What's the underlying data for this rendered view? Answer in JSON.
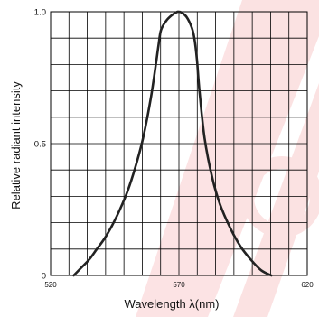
{
  "chart_data": {
    "type": "line",
    "xlabel": "Wavelength λ(nm)",
    "ylabel": "Relative radiant intensity",
    "xlim": [
      520,
      620
    ],
    "ylim": [
      0,
      1.0
    ],
    "x_ticks": [
      {
        "value": 520,
        "label": "520"
      },
      {
        "value": 570,
        "label": "570"
      },
      {
        "value": 620,
        "label": "620"
      }
    ],
    "y_ticks": [
      {
        "value": 0,
        "label": "0"
      },
      {
        "value": 0.5,
        "label": "0.5"
      },
      {
        "value": 1.0,
        "label": "1.0"
      }
    ],
    "grid": true,
    "series": [
      {
        "color": "#222222",
        "x": [
          529,
          532,
          535,
          538,
          541,
          544,
          547,
          550,
          553,
          556,
          559,
          561,
          562,
          563,
          565,
          567,
          569,
          570,
          571,
          573,
          575,
          576,
          577,
          578,
          580,
          583,
          586,
          590,
          594,
          598,
          602,
          606
        ],
        "y": [
          0.0,
          0.03,
          0.06,
          0.1,
          0.14,
          0.19,
          0.25,
          0.32,
          0.41,
          0.52,
          0.67,
          0.8,
          0.87,
          0.93,
          0.965,
          0.985,
          0.998,
          1.0,
          0.997,
          0.98,
          0.94,
          0.9,
          0.82,
          0.7,
          0.52,
          0.37,
          0.27,
          0.18,
          0.11,
          0.06,
          0.02,
          0.0
        ]
      }
    ]
  },
  "watermark_color": "#e8262b"
}
